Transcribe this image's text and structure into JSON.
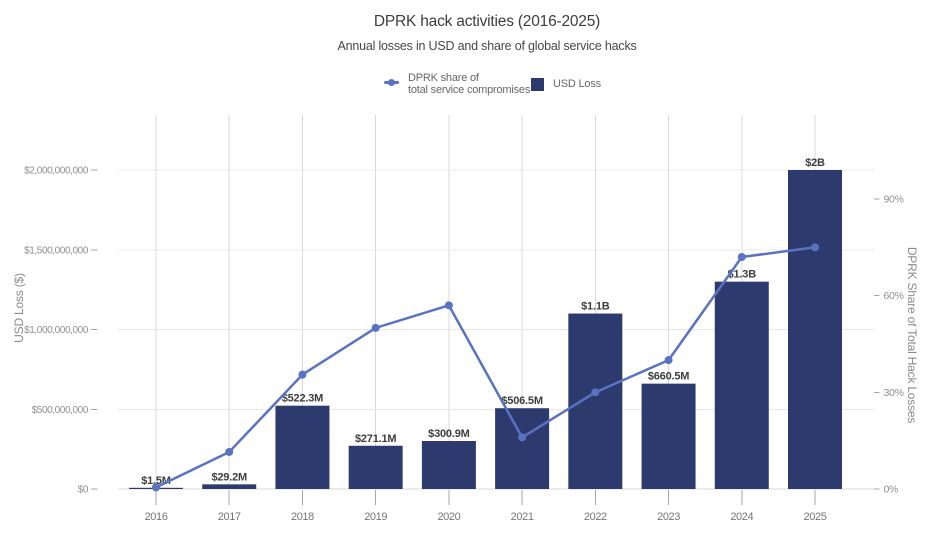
{
  "title": "DPRK hack activities (2016-2025)",
  "subtitle": "Annual losses in USD and share of global service hacks",
  "legend": {
    "line_series": {
      "label_line1": "DPRK share of",
      "label_line2": "total service compromises"
    },
    "bar_series": {
      "label": "USD Loss"
    }
  },
  "colors": {
    "bar": "#2d3a6d",
    "line": "#5a72c2",
    "grid_h": "#e8e8e8",
    "grid_v": "#d8d8d8",
    "axis_line": "#d8d8d8",
    "tick": "#a6a6a6",
    "tick_label": "#8f8f8f",
    "year_label": "#757575",
    "axis_title": "#8a8a8a",
    "bar_label": "#3d3d3d",
    "title": "#3d3d3d",
    "subtitle": "#474747",
    "legend_text": "#666666"
  },
  "chart_data": {
    "type": "bar+line",
    "title": "DPRK hack activities (2016-2025)",
    "subtitle": "Annual losses in USD and share of global service hacks",
    "categories": [
      "2016",
      "2017",
      "2018",
      "2019",
      "2020",
      "2021",
      "2022",
      "2023",
      "2024",
      "2025"
    ],
    "series": [
      {
        "name": "USD Loss",
        "type": "bar",
        "axis": "left",
        "values_usd": [
          1500000,
          29200000,
          522300000,
          271100000,
          300900000,
          506500000,
          1100000000,
          660500000,
          1300000000,
          2000000000
        ],
        "labels": [
          "$1.5M",
          "$29.2M",
          "$522.3M",
          "$271.1M",
          "$300.9M",
          "$506.5M",
          "$1.1B",
          "$660.5M",
          "$1.3B",
          "$2B"
        ]
      },
      {
        "name": "DPRK share of total service compromises",
        "type": "line",
        "axis": "right",
        "values_pct": [
          0.5,
          11.5,
          35.5,
          50,
          57,
          16,
          30,
          40,
          72,
          75
        ]
      }
    ],
    "left_axis": {
      "title": "USD Loss ($)",
      "tick_values": [
        0,
        500000000,
        1000000000,
        1500000000,
        2000000000
      ],
      "tick_labels": [
        "$0",
        "$500,000,000",
        "$1,000,000,000",
        "$1,500,000,000",
        "$2,000,000,000"
      ],
      "range": [
        0,
        2000000000
      ]
    },
    "right_axis": {
      "title": "DPRK Share of Total Hack Losses",
      "tick_values": [
        0,
        30,
        60,
        90
      ],
      "tick_labels": [
        "0%",
        "30%",
        "60%",
        "90%"
      ],
      "range": [
        0,
        116
      ]
    },
    "grid": true,
    "legend_position": "top-center"
  }
}
